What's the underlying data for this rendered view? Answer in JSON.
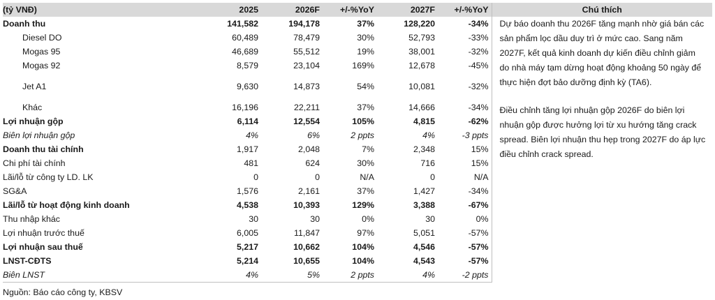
{
  "header": {
    "label": "(tỷ VNĐ)",
    "y2025": "2025",
    "y2026": "2026F",
    "yoy1": "+/-%YoY",
    "y2027": "2027F",
    "yoy2": "+/-%YoY",
    "note": "Chú thích"
  },
  "rows": [
    {
      "label": "Doanh thu",
      "v2025": "141,582",
      "v2026": "194,178",
      "yoy1": "37%",
      "v2027": "128,220",
      "yoy2": "-34%"
    },
    {
      "label": "Diesel DO",
      "v2025": "60,489",
      "v2026": "78,479",
      "yoy1": "30%",
      "v2027": "52,793",
      "yoy2": "-33%"
    },
    {
      "label": "Mogas 95",
      "v2025": "46,689",
      "v2026": "55,512",
      "yoy1": "19%",
      "v2027": "38,001",
      "yoy2": "-32%"
    },
    {
      "label": "Mogas 92",
      "v2025": "8,579",
      "v2026": "23,104",
      "yoy1": "169%",
      "v2027": "12,678",
      "yoy2": "-45%"
    },
    {
      "label": "Jet A1",
      "v2025": "9,630",
      "v2026": "14,873",
      "yoy1": "54%",
      "v2027": "10,081",
      "yoy2": "-32%"
    },
    {
      "label": "Khác",
      "v2025": "16,196",
      "v2026": "22,211",
      "yoy1": "37%",
      "v2027": "14,666",
      "yoy2": "-34%"
    },
    {
      "label": "Lợi nhuận gộp",
      "v2025": "6,114",
      "v2026": "12,554",
      "yoy1": "105%",
      "v2027": "4,815",
      "yoy2": "-62%"
    },
    {
      "label": "Biên lợi nhuận gộp",
      "v2025": "4%",
      "v2026": "6%",
      "yoy1": "2 ppts",
      "v2027": "4%",
      "yoy2": "-3 ppts"
    },
    {
      "label": "Doanh thu tài chính",
      "v2025": "1,917",
      "v2026": "2,048",
      "yoy1": "7%",
      "v2027": "2,348",
      "yoy2": "15%"
    },
    {
      "label": "Chi phí tài chính",
      "v2025": "481",
      "v2026": "624",
      "yoy1": "30%",
      "v2027": "716",
      "yoy2": "15%"
    },
    {
      "label": "Lãi/lỗ từ công ty LD. LK",
      "v2025": "0",
      "v2026": "0",
      "yoy1": "N/A",
      "v2027": "0",
      "yoy2": "N/A"
    },
    {
      "label": "SG&A",
      "v2025": "1,576",
      "v2026": "2,161",
      "yoy1": "37%",
      "v2027": "1,427",
      "yoy2": "-34%"
    },
    {
      "label": "Lãi/lỗ từ hoạt động kinh doanh",
      "v2025": "4,538",
      "v2026": "10,393",
      "yoy1": "129%",
      "v2027": "3,388",
      "yoy2": "-67%"
    },
    {
      "label": "Thu nhập khác",
      "v2025": "30",
      "v2026": "30",
      "yoy1": "0%",
      "v2027": "30",
      "yoy2": "0%"
    },
    {
      "label": "Lợi nhuận trước thuế",
      "v2025": "6,005",
      "v2026": "11,847",
      "yoy1": "97%",
      "v2027": "5,051",
      "yoy2": "-57%"
    },
    {
      "label": "Lợi nhuận sau thuế",
      "v2025": "5,217",
      "v2026": "10,662",
      "yoy1": "104%",
      "v2027": "4,546",
      "yoy2": "-57%"
    },
    {
      "label": "LNST-CĐTS",
      "v2025": "5,214",
      "v2026": "10,655",
      "yoy1": "104%",
      "v2027": "4,543",
      "yoy2": "-57%"
    },
    {
      "label": "Biên LNST",
      "v2025": "4%",
      "v2026": "5%",
      "yoy1": "2 ppts",
      "v2027": "4%",
      "yoy2": "-2 ppts"
    }
  ],
  "notes": [
    "Dự báo doanh thu 2026F tăng mạnh nhờ giá bán các sản phẩm lọc dầu duy trì ở mức cao. Sang năm 2027F, kết quả kinh doanh dự kiến điều chỉnh giảm do nhà máy tạm dừng hoạt động khoảng 50 ngày để thực hiện đợt bảo dưỡng định kỳ (TA6).",
    "Điều chỉnh tăng lợi nhuận gộp 2026F do biên lợi nhuận gộp được hưởng lợi từ xu hướng tăng crack spread. Biên lợi nhuận thu hẹp trong 2027F do áp lực điều chỉnh crack spread."
  ],
  "source": "Nguồn: Báo cáo công ty, KBSV"
}
